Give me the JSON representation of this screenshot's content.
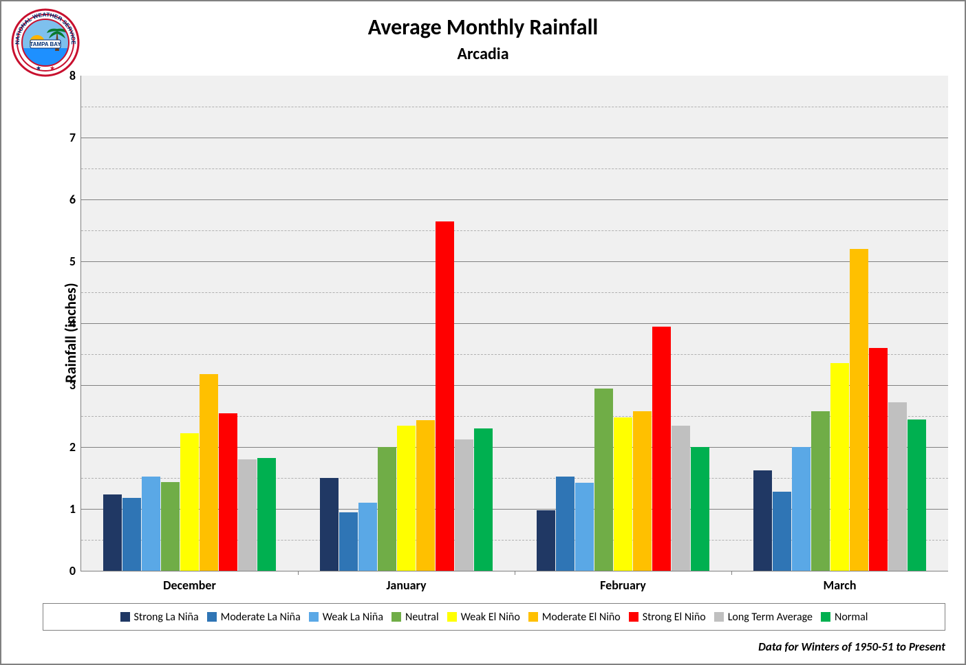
{
  "title": "Average Monthly Rainfall",
  "subtitle": "Arcadia",
  "title_fontsize": 32,
  "subtitle_fontsize": 24,
  "ylabel": "Rainfall (inches)",
  "ylabel_fontsize": 22,
  "footnote": "Data for Winters of 1950-51 to Present",
  "footnote_fontsize": 17,
  "logo": {
    "outer_ring_text_top": "NATIONAL WEATHER SERVICE",
    "banner_text": "TAMPA BAY",
    "ring_color": "#c8102e",
    "ring_text_color": "#002d72",
    "inner_bg": "#ffffff",
    "sky_color": "#7ec0ee",
    "sun_color": "#ffb400",
    "palm_color": "#0a7a2f",
    "water_color": "#1e90ff"
  },
  "chart": {
    "type": "grouped-bar",
    "background_color": "#f0f0f0",
    "axis_color": "#808080",
    "grid_major_color": "#808080",
    "grid_minor_color": "#b0b0b0",
    "ylim": [
      0,
      8
    ],
    "ytick_major_step": 1,
    "ytick_minor_offset": 0.5,
    "ytick_fontsize": 18,
    "category_fontsize": 18,
    "categories": [
      "December",
      "January",
      "February",
      "March"
    ],
    "series": [
      {
        "name": "Strong La Niña",
        "color": "#203864"
      },
      {
        "name": "Moderate La Niña",
        "color": "#2f75b5"
      },
      {
        "name": "Weak La Niña",
        "color": "#5aa8e6"
      },
      {
        "name": "Neutral",
        "color": "#70ad47"
      },
      {
        "name": "Weak El Niño",
        "color": "#ffff00"
      },
      {
        "name": "Moderate El Niño",
        "color": "#ffc000"
      },
      {
        "name": "Strong El Niño",
        "color": "#ff0000"
      },
      {
        "name": "Long Term Average",
        "color": "#c0c0c0"
      },
      {
        "name": "Normal",
        "color": "#00b050"
      }
    ],
    "values": [
      [
        1.23,
        1.18,
        1.52,
        1.43,
        2.22,
        3.18,
        2.55,
        1.8,
        1.82
      ],
      [
        1.5,
        0.95,
        1.1,
        2.0,
        2.35,
        2.43,
        5.65,
        2.12,
        2.3
      ],
      [
        0.98,
        1.52,
        1.42,
        2.95,
        2.48,
        2.58,
        3.95,
        2.35,
        2.0
      ],
      [
        1.62,
        1.28,
        2.0,
        2.58,
        3.36,
        5.2,
        3.6,
        2.72,
        2.45
      ]
    ],
    "legend_fontsize": 16,
    "group_inner_pad_ratio": 0.1,
    "bar_gap_ratio": 0.02
  }
}
